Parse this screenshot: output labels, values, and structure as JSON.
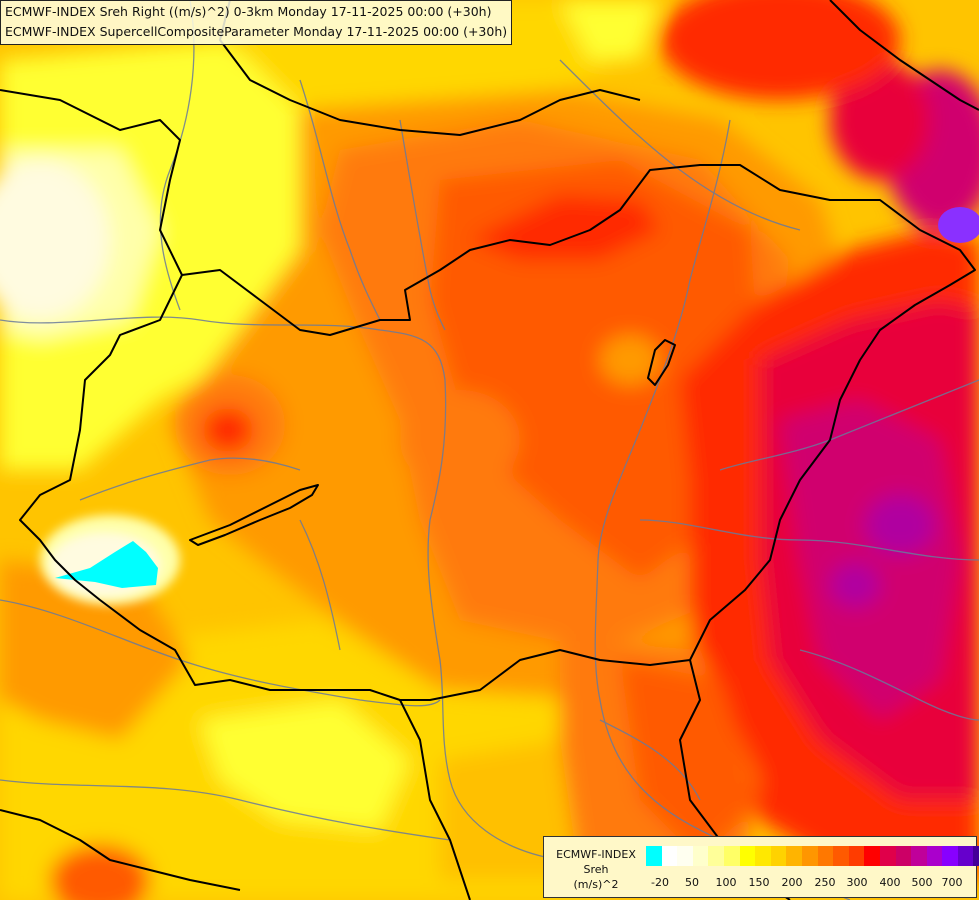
{
  "header": {
    "line1": "ECMWF-INDEX Sreh Right ((m/s)^2) 0-3km Monday 17-11-2025 00:00 (+30h)",
    "line2": "ECMWF-INDEX SupercellCompositeParameter Monday 17-11-2025 00:00 (+30h)"
  },
  "legend": {
    "line1": "ECMWF-INDEX",
    "line2": "Sreh",
    "line3": "(m/s)^2",
    "colors": [
      "#00ffff",
      "#ffffff",
      "#fffff0",
      "#ffffcc",
      "#ffff99",
      "#ffff66",
      "#ffff00",
      "#ffe800",
      "#ffd200",
      "#ffb400",
      "#ff9600",
      "#ff7800",
      "#ff5a00",
      "#ff3c00",
      "#ff0000",
      "#e0004a",
      "#cc0066",
      "#c0009a",
      "#aa00cc",
      "#8800ff",
      "#6600cc",
      "#440099",
      "#220077"
    ],
    "ticks": [
      "-20",
      "50",
      "100",
      "150",
      "200",
      "250",
      "300",
      "400",
      "500",
      "700"
    ]
  },
  "map": {
    "field_colors": {
      "light_yellow": "#ffffaa",
      "pale": "#fffbe0",
      "yellow": "#ffff33",
      "gold": "#ffd700",
      "amber": "#ffc000",
      "orange": "#ff9a00",
      "dark_orange": "#ff7a10",
      "red_orange": "#ff5a00",
      "red": "#ff2a00",
      "crimson": "#e8003a",
      "magenta": "#d0006e",
      "purple": "#b000a0",
      "violet": "#8a30ff",
      "cyan": "#00ffff"
    },
    "border_color": "#000000",
    "river_color": "#6a7a9a"
  }
}
